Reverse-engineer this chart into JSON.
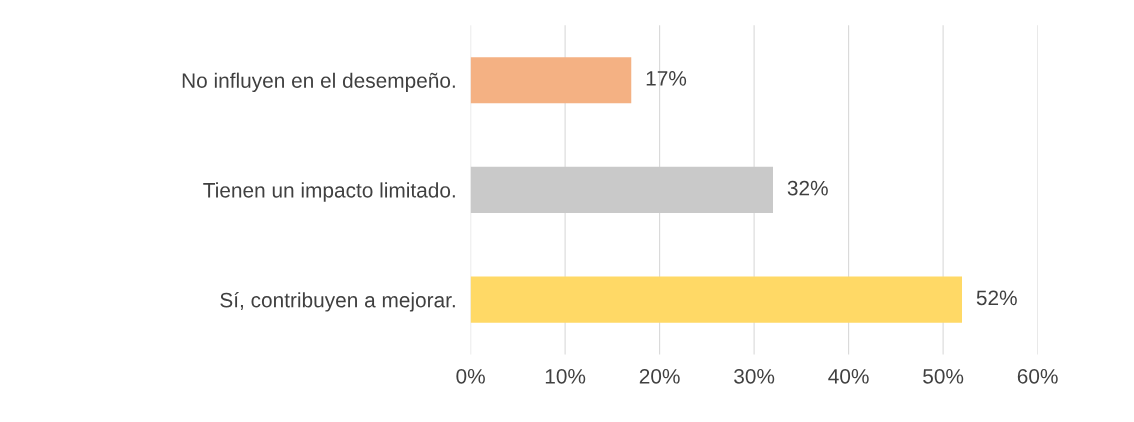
{
  "chart_data": {
    "type": "bar",
    "orientation": "horizontal",
    "categories": [
      "No influyen en el desempeño.",
      "Tienen un impacto limitado.",
      "Sí, contribuyen a mejorar."
    ],
    "values": [
      17,
      32,
      52
    ],
    "colors": [
      "#f4b183",
      "#c9c9c9",
      "#ffd966"
    ],
    "value_labels": [
      "17%",
      "32%",
      "52%"
    ],
    "xlim": [
      0,
      60
    ],
    "xticks": [
      {
        "value": 0,
        "label": "0%"
      },
      {
        "value": 10,
        "label": "10%"
      },
      {
        "value": 20,
        "label": "20%"
      },
      {
        "value": 30,
        "label": "30%"
      },
      {
        "value": 40,
        "label": "40%"
      },
      {
        "value": 50,
        "label": "50%"
      },
      {
        "value": 60,
        "label": "60%"
      }
    ],
    "grid": "x"
  }
}
